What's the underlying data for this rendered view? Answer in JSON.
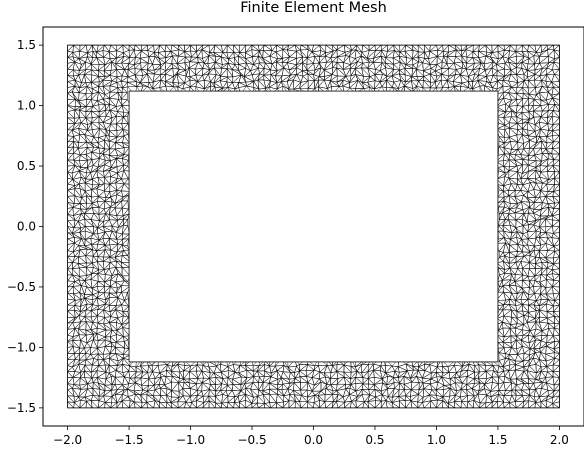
{
  "chart_data": {
    "type": "triangular-mesh",
    "title": "Finite Element Mesh",
    "xlabel": "",
    "ylabel": "",
    "xlim": [
      -2.2,
      2.2
    ],
    "ylim": [
      -1.65,
      1.65
    ],
    "xticks": [
      -2.0,
      -1.5,
      -1.0,
      -0.5,
      0.0,
      0.5,
      1.0,
      1.5,
      2.0
    ],
    "yticks": [
      -1.5,
      -1.0,
      -0.5,
      0.0,
      0.5,
      1.0,
      1.5
    ],
    "xtick_labels": [
      "−2.0",
      "−1.5",
      "−1.0",
      "−0.5",
      "0.0",
      "0.5",
      "1.0",
      "1.5",
      "2.0"
    ],
    "ytick_labels": [
      "−1.5",
      "−1.0",
      "−0.5",
      "0.0",
      "0.5",
      "1.0",
      "1.5"
    ],
    "outer_boundary": [
      [
        -2.0,
        -1.5
      ],
      [
        2.0,
        -1.5
      ],
      [
        2.0,
        1.5
      ],
      [
        -2.0,
        1.5
      ]
    ],
    "inner_hole": [
      [
        -1.5,
        -1.12
      ],
      [
        1.5,
        -1.12
      ],
      [
        1.5,
        1.12
      ],
      [
        -1.5,
        1.12
      ]
    ],
    "element_size": 0.05,
    "grid": false,
    "colors": {
      "edges": "#000000",
      "fill": "#ffffff"
    }
  }
}
